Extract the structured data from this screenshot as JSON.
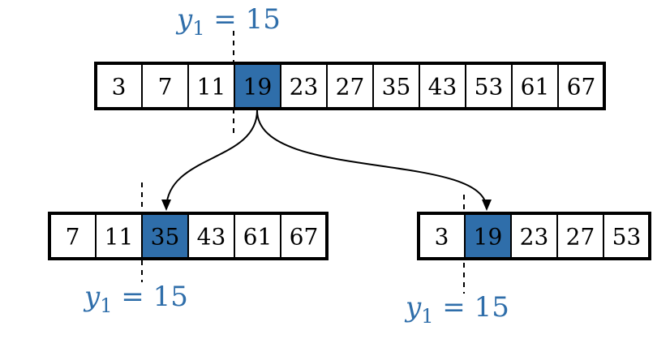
{
  "colors": {
    "highlight": "#2f6eaa",
    "label": "#2f6eaa",
    "border": "#000000",
    "cell_background": "#ffffff"
  },
  "arrays": {
    "top": {
      "cells": [
        "3",
        "7",
        "11",
        "19",
        "23",
        "27",
        "35",
        "43",
        "53",
        "61",
        "67"
      ],
      "highlight_index": 3
    },
    "left": {
      "cells": [
        "7",
        "11",
        "35",
        "43",
        "61",
        "67"
      ],
      "highlight_index": 2
    },
    "right": {
      "cells": [
        "3",
        "19",
        "23",
        "27",
        "53"
      ],
      "highlight_index": 1
    }
  },
  "labels": {
    "top": {
      "var": "y",
      "sub": "1",
      "rest": " = 15"
    },
    "left": {
      "var": "y",
      "sub": "1",
      "rest": " = 15"
    },
    "right": {
      "var": "y",
      "sub": "1",
      "rest": " = 15"
    }
  }
}
